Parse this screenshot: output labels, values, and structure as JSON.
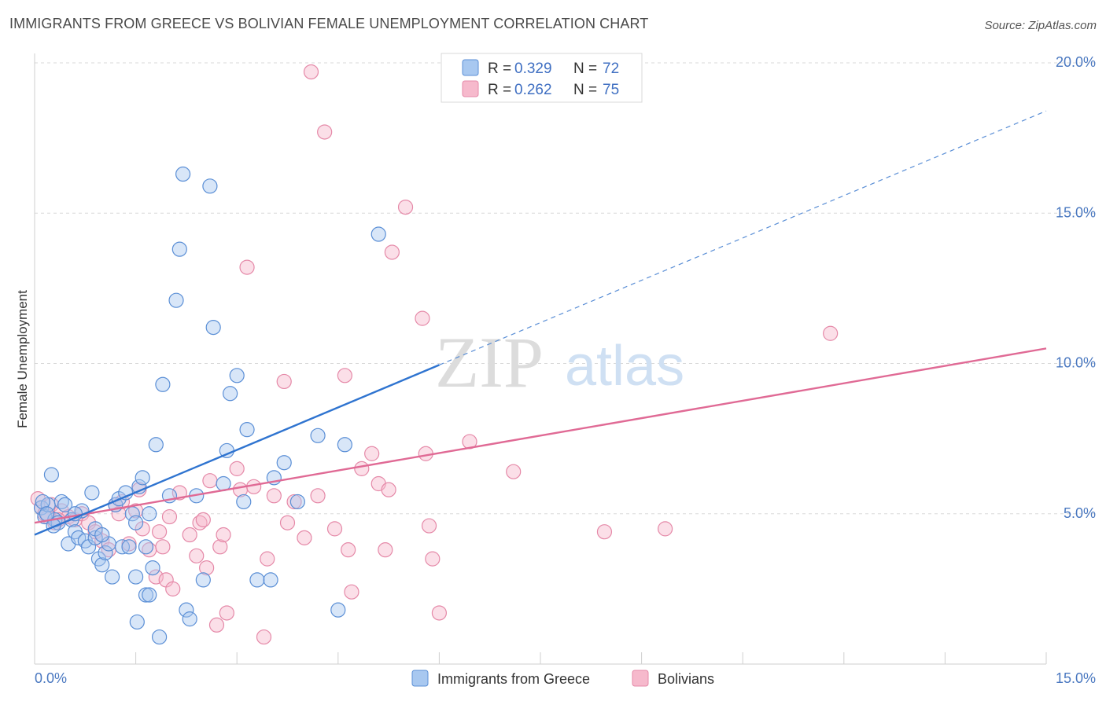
{
  "title": "IMMIGRANTS FROM GREECE VS BOLIVIAN FEMALE UNEMPLOYMENT CORRELATION CHART",
  "source": "Source: ZipAtlas.com",
  "watermark": {
    "zip": "ZIP",
    "atlas": "atlas"
  },
  "colors": {
    "blue_fill": "#a8c8f0",
    "blue_stroke": "#5b8fd6",
    "blue_line": "#2f74d0",
    "pink_fill": "#f6b9cc",
    "pink_stroke": "#e589a8",
    "pink_line": "#e06a95",
    "tick": "#4a78c0",
    "grid": "#d8d8d8"
  },
  "legend": {
    "rows": [
      {
        "r_label": "R =",
        "r_value": "0.329",
        "n_label": "N =",
        "n_value": "72"
      },
      {
        "r_label": "R =",
        "r_value": "0.262",
        "n_label": "N =",
        "n_value": "75"
      }
    ]
  },
  "chart_data": {
    "type": "scatter",
    "title": "IMMIGRANTS FROM GREECE VS BOLIVIAN FEMALE UNEMPLOYMENT CORRELATION CHART",
    "xlabel": "",
    "ylabel": "Female Unemployment",
    "xlim": [
      0,
      15
    ],
    "ylim": [
      0,
      20
    ],
    "x_tick_labels": [
      "0.0%",
      "15.0%"
    ],
    "y_ticks": [
      5,
      10,
      15,
      20
    ],
    "y_tick_labels": [
      "5.0%",
      "10.0%",
      "15.0%",
      "20.0%"
    ],
    "grid": true,
    "legend_position": "top-center",
    "series": [
      {
        "name": "Immigrants from Greece",
        "color": "#a8c8f0",
        "r": 0.329,
        "n": 72,
        "trend": {
          "x0": 0,
          "y0": 4.3,
          "x1": 6.0,
          "y1": 9.95,
          "dash_x1": 15,
          "dash_y1": 18.4
        },
        "points": [
          [
            0.1,
            5.2
          ],
          [
            0.15,
            4.9
          ],
          [
            0.2,
            5.3
          ],
          [
            0.25,
            6.3
          ],
          [
            0.3,
            4.8
          ],
          [
            0.35,
            4.7
          ],
          [
            0.4,
            5.4
          ],
          [
            0.45,
            5.3
          ],
          [
            0.5,
            4.0
          ],
          [
            0.55,
            4.8
          ],
          [
            0.6,
            4.4
          ],
          [
            0.65,
            4.2
          ],
          [
            0.7,
            5.1
          ],
          [
            0.75,
            4.1
          ],
          [
            0.8,
            3.9
          ],
          [
            0.85,
            5.7
          ],
          [
            0.9,
            4.2
          ],
          [
            0.95,
            3.5
          ],
          [
            1.0,
            3.3
          ],
          [
            1.05,
            3.7
          ],
          [
            1.1,
            4.0
          ],
          [
            1.15,
            2.9
          ],
          [
            1.2,
            5.3
          ],
          [
            1.25,
            5.5
          ],
          [
            1.3,
            3.9
          ],
          [
            1.35,
            5.7
          ],
          [
            1.4,
            3.9
          ],
          [
            1.45,
            5.0
          ],
          [
            1.5,
            4.7
          ],
          [
            1.55,
            5.9
          ],
          [
            1.6,
            6.2
          ],
          [
            1.65,
            3.9
          ],
          [
            1.7,
            5.0
          ],
          [
            1.5,
            2.9
          ],
          [
            1.52,
            1.4
          ],
          [
            1.65,
            2.3
          ],
          [
            1.75,
            3.2
          ],
          [
            1.8,
            7.3
          ],
          [
            1.85,
            0.9
          ],
          [
            1.9,
            9.3
          ],
          [
            2.0,
            5.6
          ],
          [
            2.1,
            12.1
          ],
          [
            2.15,
            13.8
          ],
          [
            2.2,
            16.3
          ],
          [
            2.25,
            1.8
          ],
          [
            2.3,
            1.5
          ],
          [
            2.4,
            5.6
          ],
          [
            2.5,
            2.8
          ],
          [
            2.6,
            15.9
          ],
          [
            2.65,
            11.2
          ],
          [
            2.8,
            6.0
          ],
          [
            2.85,
            7.1
          ],
          [
            2.9,
            9.0
          ],
          [
            3.0,
            9.6
          ],
          [
            3.1,
            5.4
          ],
          [
            3.15,
            7.8
          ],
          [
            3.3,
            2.8
          ],
          [
            3.5,
            2.8
          ],
          [
            3.55,
            6.2
          ],
          [
            3.7,
            6.7
          ],
          [
            3.9,
            5.4
          ],
          [
            4.2,
            7.6
          ],
          [
            4.5,
            1.8
          ],
          [
            4.6,
            7.3
          ],
          [
            5.1,
            14.3
          ],
          [
            0.12,
            5.4
          ],
          [
            0.18,
            5.0
          ],
          [
            0.28,
            4.6
          ],
          [
            0.6,
            5.0
          ],
          [
            0.9,
            4.5
          ],
          [
            1.0,
            4.3
          ],
          [
            1.7,
            2.3
          ]
        ]
      },
      {
        "name": "Bolivians",
        "color": "#f6b9cc",
        "r": 0.262,
        "n": 75,
        "trend": {
          "x0": 0,
          "y0": 4.7,
          "x1": 15,
          "y1": 10.5
        },
        "points": [
          [
            0.05,
            5.5
          ],
          [
            0.1,
            5.2
          ],
          [
            0.15,
            5.0
          ],
          [
            0.2,
            4.9
          ],
          [
            0.25,
            5.3
          ],
          [
            0.3,
            4.7
          ],
          [
            0.4,
            5.1
          ],
          [
            0.5,
            4.9
          ],
          [
            0.6,
            4.8
          ],
          [
            0.7,
            5.0
          ],
          [
            0.8,
            4.7
          ],
          [
            0.9,
            4.4
          ],
          [
            1.0,
            4.1
          ],
          [
            1.1,
            3.8
          ],
          [
            1.2,
            5.3
          ],
          [
            1.25,
            5.0
          ],
          [
            1.3,
            5.4
          ],
          [
            1.4,
            4.0
          ],
          [
            1.5,
            5.1
          ],
          [
            1.55,
            5.8
          ],
          [
            1.6,
            4.5
          ],
          [
            1.7,
            3.8
          ],
          [
            1.8,
            2.9
          ],
          [
            1.85,
            4.4
          ],
          [
            1.9,
            3.9
          ],
          [
            1.95,
            2.8
          ],
          [
            2.0,
            4.9
          ],
          [
            2.05,
            2.5
          ],
          [
            2.15,
            5.7
          ],
          [
            2.3,
            4.3
          ],
          [
            2.4,
            3.6
          ],
          [
            2.45,
            4.7
          ],
          [
            2.5,
            4.8
          ],
          [
            2.55,
            3.2
          ],
          [
            2.6,
            6.1
          ],
          [
            2.7,
            1.3
          ],
          [
            2.75,
            3.9
          ],
          [
            2.8,
            4.3
          ],
          [
            2.85,
            1.7
          ],
          [
            3.0,
            6.5
          ],
          [
            3.05,
            5.8
          ],
          [
            3.15,
            13.2
          ],
          [
            3.25,
            5.9
          ],
          [
            3.4,
            0.9
          ],
          [
            3.45,
            3.5
          ],
          [
            3.55,
            5.6
          ],
          [
            3.7,
            9.4
          ],
          [
            3.75,
            4.7
          ],
          [
            3.85,
            5.4
          ],
          [
            4.0,
            4.2
          ],
          [
            4.1,
            19.7
          ],
          [
            4.2,
            5.6
          ],
          [
            4.3,
            17.7
          ],
          [
            4.45,
            4.5
          ],
          [
            4.6,
            9.6
          ],
          [
            4.65,
            3.8
          ],
          [
            4.7,
            2.4
          ],
          [
            4.85,
            6.5
          ],
          [
            5.0,
            7.0
          ],
          [
            5.1,
            6.0
          ],
          [
            5.2,
            3.8
          ],
          [
            5.25,
            5.8
          ],
          [
            5.3,
            13.7
          ],
          [
            5.5,
            15.2
          ],
          [
            5.75,
            11.5
          ],
          [
            5.8,
            7.0
          ],
          [
            5.85,
            4.6
          ],
          [
            5.9,
            3.5
          ],
          [
            6.0,
            1.7
          ],
          [
            6.45,
            7.4
          ],
          [
            7.1,
            6.4
          ],
          [
            8.45,
            4.4
          ],
          [
            9.35,
            4.5
          ],
          [
            11.8,
            11.0
          ],
          [
            0.35,
            4.8
          ]
        ]
      }
    ]
  },
  "bottom_legend": {
    "items": [
      "Immigrants from Greece",
      "Bolivians"
    ]
  }
}
